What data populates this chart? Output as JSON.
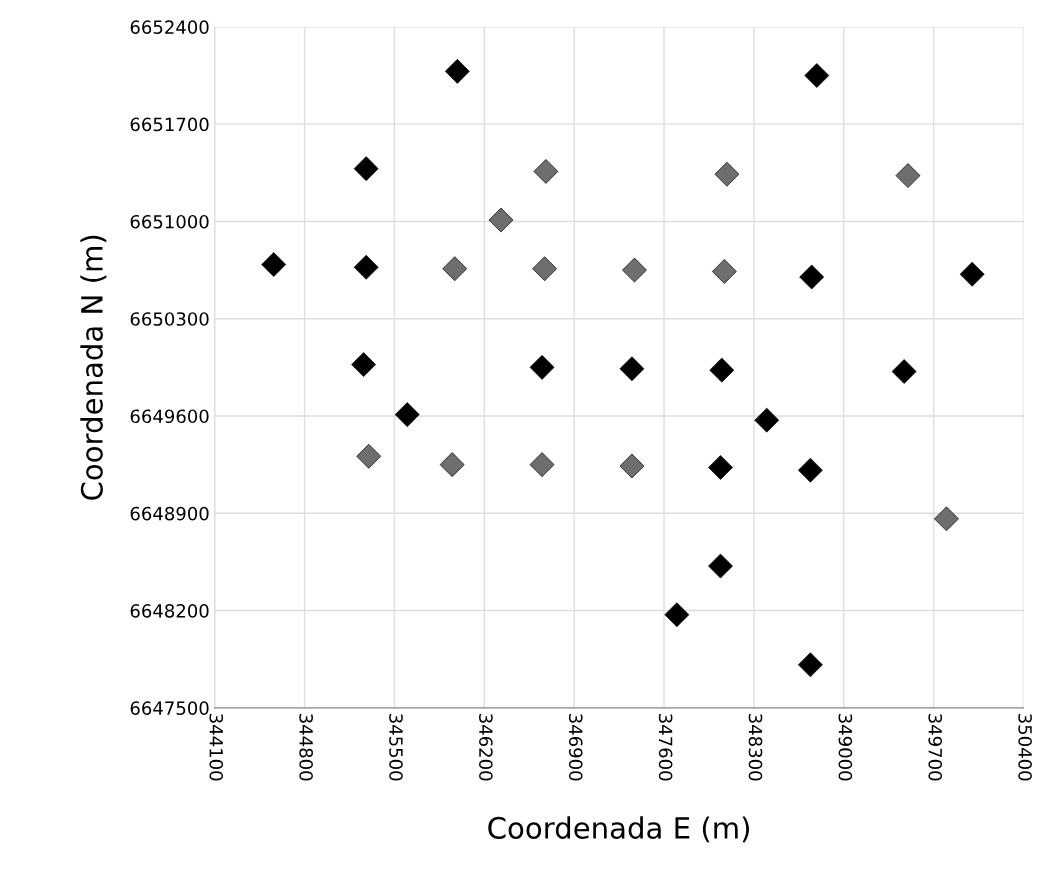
{
  "chart_data": {
    "type": "scatter",
    "xlabel": "Coordenada E (m)",
    "ylabel": "Coordenada N (m)",
    "xlim": [
      344100,
      350400
    ],
    "xticks": [
      344100,
      344800,
      345500,
      346200,
      346900,
      347600,
      348300,
      349000,
      349700,
      350400
    ],
    "ylim": [
      6647500,
      6652400
    ],
    "yticks": [
      6647500,
      6648200,
      6648900,
      6649600,
      6650300,
      6651000,
      6651700,
      6652400
    ],
    "grid": true,
    "marker": "diamond",
    "legend": false,
    "series": [
      {
        "color": "#000000",
        "x": [
          345990,
          348790,
          345280,
          344560,
          345280,
          348750,
          350000,
          345260,
          346650,
          347350,
          348050,
          349470,
          345600,
          348400,
          348040,
          348740,
          348040,
          347700,
          348740
        ],
        "values": [
          6652080,
          6652050,
          6651380,
          6650690,
          6650670,
          6650600,
          6650620,
          6649970,
          6649950,
          6649940,
          6649930,
          6649920,
          6649610,
          6649570,
          6649230,
          6649210,
          6648520,
          6648170,
          6647810
        ]
      },
      {
        "color": "#6e6e6e",
        "x": [
          346680,
          348090,
          349500,
          346330,
          345970,
          346670,
          347370,
          348070,
          345300,
          345950,
          346650,
          347350,
          349800
        ],
        "values": [
          6651360,
          6651340,
          6651330,
          6651010,
          6650660,
          6650660,
          6650650,
          6650640,
          6649310,
          6649250,
          6649250,
          6649240,
          6648860
        ]
      }
    ]
  }
}
